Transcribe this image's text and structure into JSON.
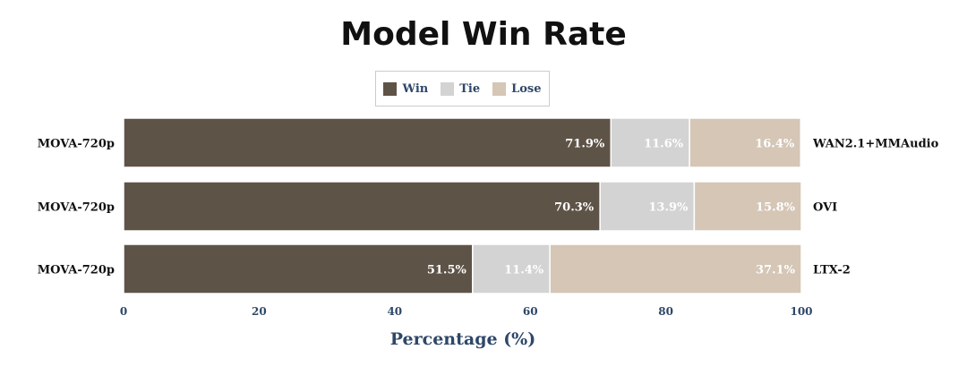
{
  "chart_data": {
    "type": "bar",
    "orientation": "horizontal",
    "stacked": true,
    "title": "Model Win Rate",
    "xlabel": "Percentage (%)",
    "ylabel": "",
    "xlim": [
      0,
      100
    ],
    "xticks": [
      0,
      20,
      40,
      60,
      80,
      100
    ],
    "legend_position": "top-center",
    "grid": false,
    "categories": [
      "MOVA-720p",
      "MOVA-720p",
      "MOVA-720p"
    ],
    "opponents": [
      "WAN2.1+MMAudio",
      "OVI",
      "LTX-2"
    ],
    "series": [
      {
        "name": "Win",
        "color": "#5e5347",
        "values": [
          71.9,
          70.3,
          51.5
        ],
        "labels": [
          "71.9%",
          "70.3%",
          "51.5%"
        ]
      },
      {
        "name": "Tie",
        "color": "#d3d3d3",
        "values": [
          11.6,
          13.9,
          11.4
        ],
        "labels": [
          "11.6%",
          "13.9%",
          "11.4%"
        ]
      },
      {
        "name": "Lose",
        "color": "#d5c6b6",
        "values": [
          16.4,
          15.8,
          37.1
        ],
        "labels": [
          "16.4%",
          "15.8%",
          "37.1%"
        ]
      }
    ]
  }
}
